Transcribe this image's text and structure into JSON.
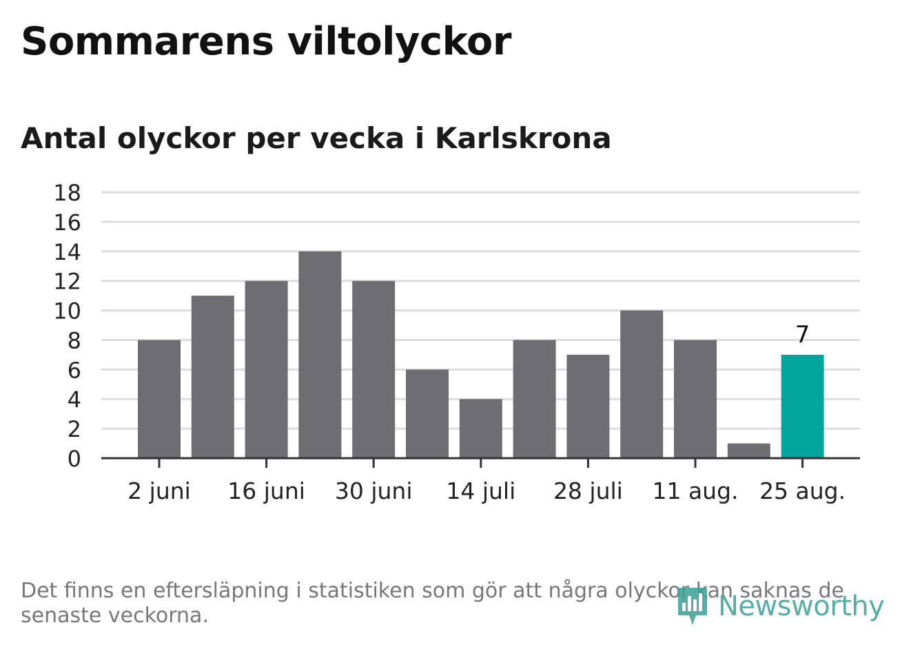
{
  "header": {
    "title": "Sommarens viltolyckor",
    "subtitle": "Antal olyckor per vecka i Karlskrona"
  },
  "footnote": "Det finns en eftersläpning i statistiken som gör att några olyckor kan saknas de senaste veckorna.",
  "logo": {
    "text": "Newsworthy"
  },
  "colors": {
    "bar": "#6e6d72",
    "highlight": "#00a69c",
    "grid": "#dddddd",
    "axis": "#333333",
    "logo": "#3a9e96"
  },
  "chart_data": {
    "type": "bar",
    "title": "Sommarens viltolyckor",
    "subtitle": "Antal olyckor per vecka i Karlskrona",
    "xlabel": "",
    "ylabel": "",
    "ylim": [
      0,
      18
    ],
    "yticks": [
      0,
      2,
      4,
      6,
      8,
      10,
      12,
      14,
      16,
      18
    ],
    "grid": true,
    "values": [
      8,
      11,
      12,
      14,
      12,
      6,
      4,
      8,
      7,
      10,
      8,
      1,
      7
    ],
    "xtick_labels": [
      {
        "index": 0,
        "label": "2 juni"
      },
      {
        "index": 2,
        "label": "16 juni"
      },
      {
        "index": 4,
        "label": "30 juni"
      },
      {
        "index": 6,
        "label": "14 juli"
      },
      {
        "index": 8,
        "label": "28 juli"
      },
      {
        "index": 10,
        "label": "11 aug."
      },
      {
        "index": 12,
        "label": "25 aug."
      }
    ],
    "highlight_index": 12,
    "data_labels": [
      {
        "index": 12,
        "label": "7"
      }
    ]
  }
}
